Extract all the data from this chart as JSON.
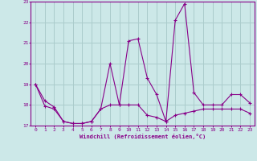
{
  "title": "",
  "xlabel": "Windchill (Refroidissement éolien,°C)",
  "background_color": "#cce8e8",
  "grid_color": "#aacccc",
  "line_color": "#880088",
  "xlim": [
    -0.5,
    23.5
  ],
  "ylim": [
    17,
    23
  ],
  "yticks": [
    17,
    18,
    19,
    20,
    21,
    22,
    23
  ],
  "xticks": [
    0,
    1,
    2,
    3,
    4,
    5,
    6,
    7,
    8,
    9,
    10,
    11,
    12,
    13,
    14,
    15,
    16,
    17,
    18,
    19,
    20,
    21,
    22,
    23
  ],
  "line1_x": [
    0,
    1,
    2,
    3,
    4,
    5,
    6,
    7,
    8,
    9,
    10,
    11,
    12,
    13,
    14,
    15,
    16,
    17,
    18,
    19,
    20,
    21,
    22,
    23
  ],
  "line1_y": [
    19.0,
    18.2,
    17.9,
    17.2,
    17.1,
    17.1,
    17.2,
    17.8,
    20.0,
    18.0,
    21.1,
    21.2,
    19.3,
    18.5,
    17.2,
    22.1,
    22.9,
    18.6,
    18.0,
    18.0,
    18.0,
    18.5,
    18.5,
    18.1
  ],
  "line2_x": [
    0,
    1,
    2,
    3,
    4,
    5,
    6,
    7,
    8,
    9,
    10,
    11,
    12,
    13,
    14,
    15,
    16,
    17,
    18,
    19,
    20,
    21,
    22,
    23
  ],
  "line2_y": [
    19.0,
    17.95,
    17.8,
    17.2,
    17.1,
    17.1,
    17.2,
    17.8,
    18.0,
    18.0,
    18.0,
    18.0,
    17.5,
    17.4,
    17.2,
    17.5,
    17.6,
    17.7,
    17.8,
    17.8,
    17.8,
    17.8,
    17.8,
    17.6
  ]
}
